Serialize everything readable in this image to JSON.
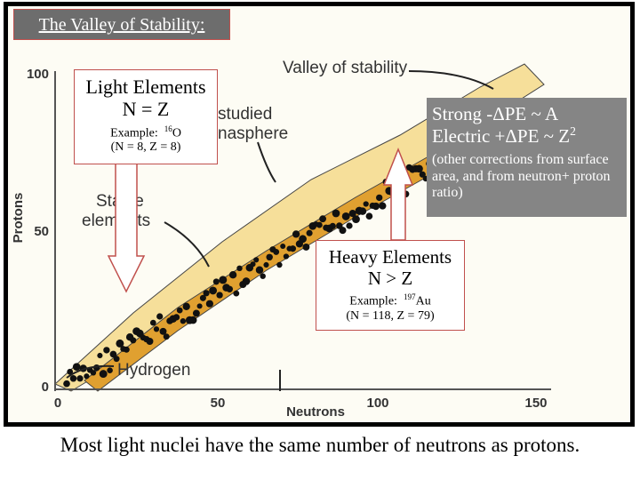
{
  "title": "The Valley of Stability:",
  "figure": {
    "y_axis_label": "Protons",
    "x_axis_label": "Neutrons",
    "y_ticks": [
      "0",
      "50",
      "100"
    ],
    "x_ticks": [
      "0",
      "50",
      "100",
      "150"
    ],
    "labels": {
      "valley": "Valley of stability",
      "studied_1": "studied",
      "studied_2": "nasphere",
      "stable_1": "Stable",
      "stable_2": "elements",
      "hydrogen": "Hydrogen"
    }
  },
  "light_box": {
    "heading": "Light Elements",
    "rule": "N = Z",
    "example_prefix": "Example:",
    "mass": "16",
    "symbol": "O",
    "detail": "(N = 8, Z = 8)"
  },
  "strong_box": {
    "strong": "Strong -ΔPE ~ A",
    "electric": "Electric +ΔPE ~ Z",
    "power": "2",
    "note": "(other corrections from surface area, and from neutron+ proton ratio)"
  },
  "heavy_box": {
    "heading": "Heavy Elements",
    "rule": "N > Z",
    "example_prefix": "Example:",
    "mass": "197",
    "symbol": "Au",
    "detail": "(N = 118, Z = 79)"
  },
  "caption": "Most light nuclei have the same number of neutrons as protons."
}
